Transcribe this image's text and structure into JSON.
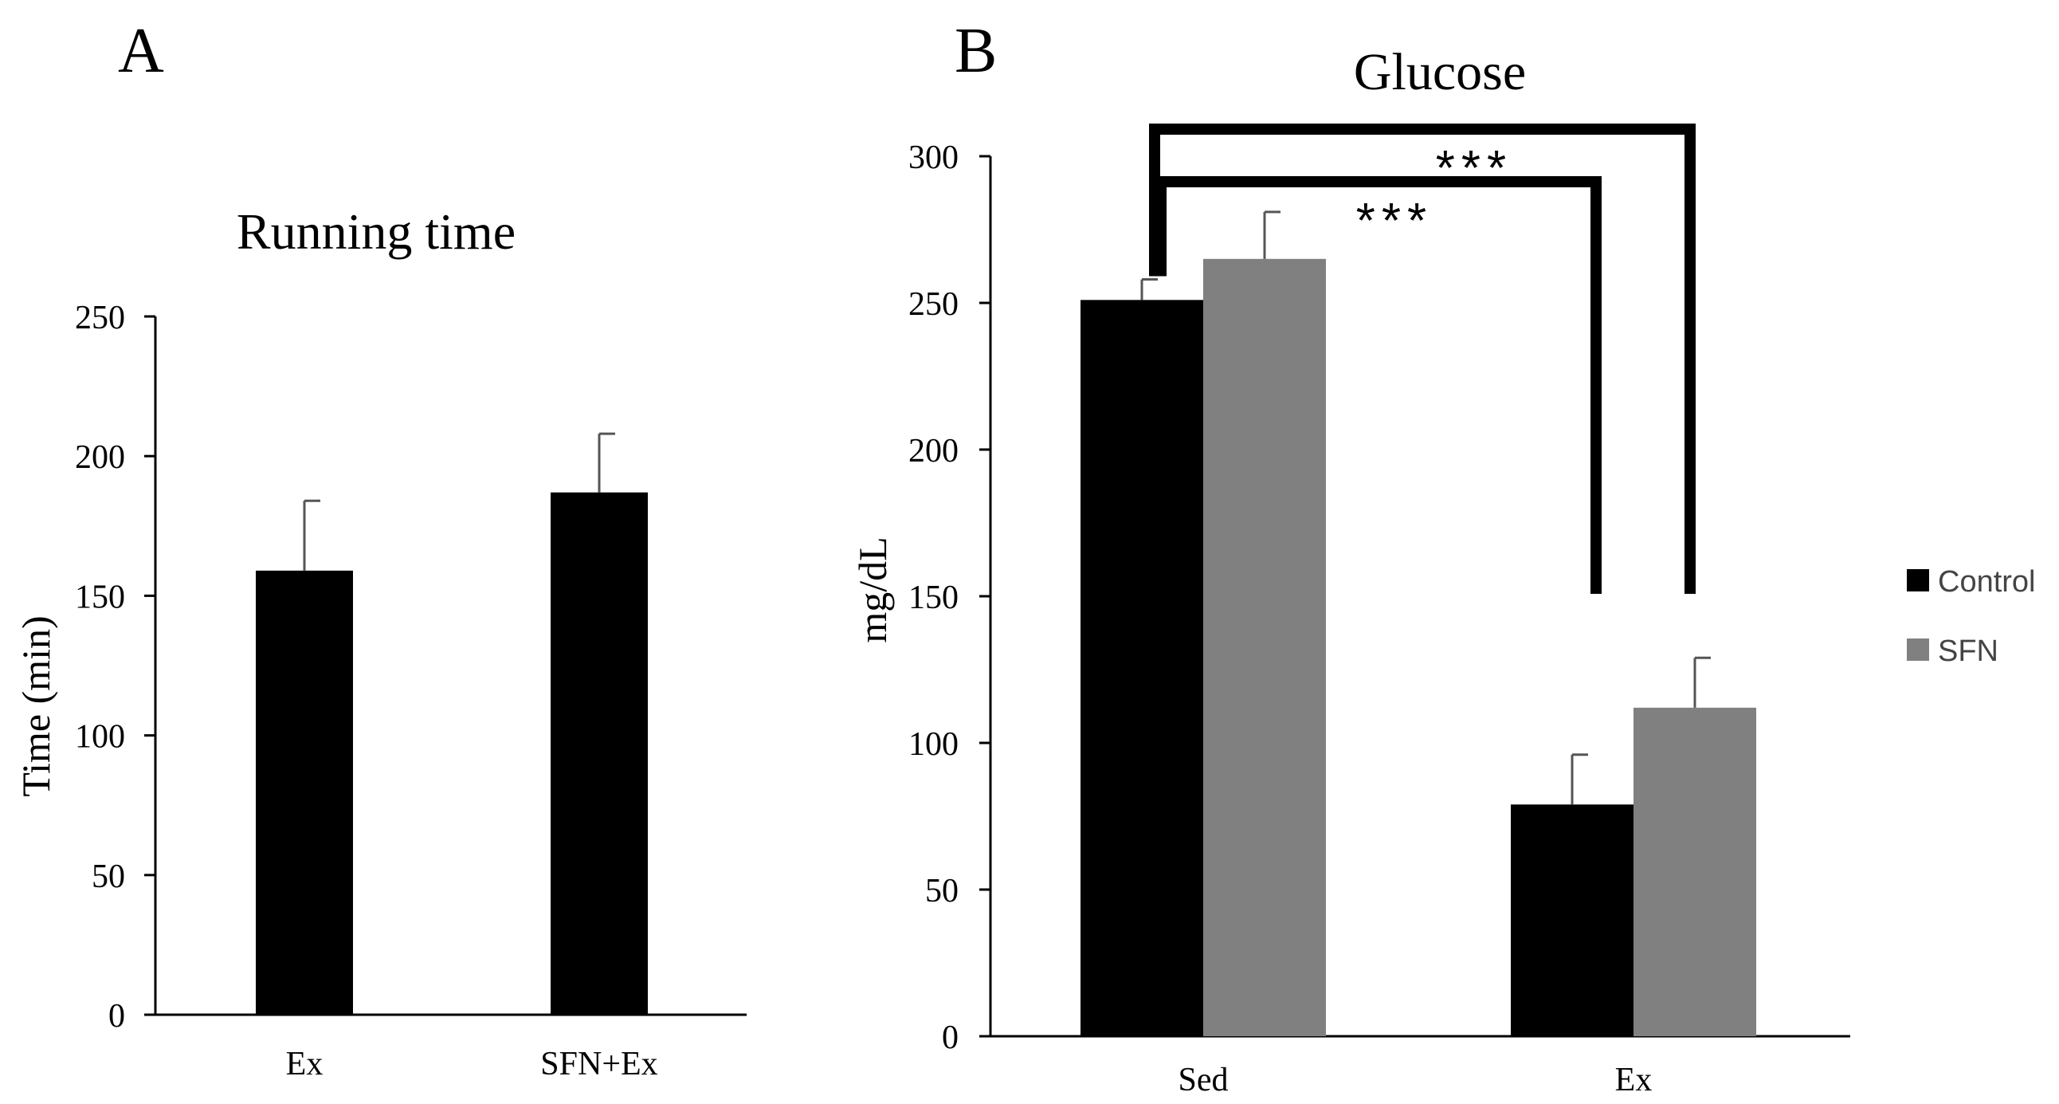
{
  "panels": {
    "a_label": "A",
    "b_label": "B"
  },
  "chart_data": [
    {
      "type": "bar",
      "title": "Running time",
      "xlabel": "",
      "ylabel": "Time (min)",
      "ylim": [
        0,
        250
      ],
      "yticks": [
        "0",
        "50",
        "100",
        "150",
        "200",
        "250"
      ],
      "categories": [
        "Ex",
        "SFN+Ex"
      ],
      "series": [
        {
          "name": "Running time",
          "color": "#000000",
          "values": [
            159,
            187
          ],
          "errors": [
            25,
            21
          ]
        }
      ]
    },
    {
      "type": "bar",
      "title": "Glucose",
      "xlabel": "",
      "ylabel": "mg/dL",
      "ylim": [
        0,
        300
      ],
      "yticks": [
        "0",
        "50",
        "100",
        "150",
        "200",
        "250",
        "300"
      ],
      "categories": [
        "Sed",
        "Ex"
      ],
      "series": [
        {
          "name": "Control",
          "color": "#000000",
          "values": [
            251,
            79
          ],
          "errors": [
            7,
            17
          ]
        },
        {
          "name": "SFN",
          "color": "#808080",
          "values": [
            265,
            112
          ],
          "errors": [
            16,
            17
          ]
        }
      ],
      "legend": {
        "position": "right",
        "entries": [
          "Control",
          "SFN"
        ]
      },
      "annotations": [
        {
          "text": "***",
          "comparison": "Sed Control vs Ex Control"
        },
        {
          "text": "***",
          "comparison": "Sed Control vs Ex SFN"
        }
      ]
    }
  ]
}
